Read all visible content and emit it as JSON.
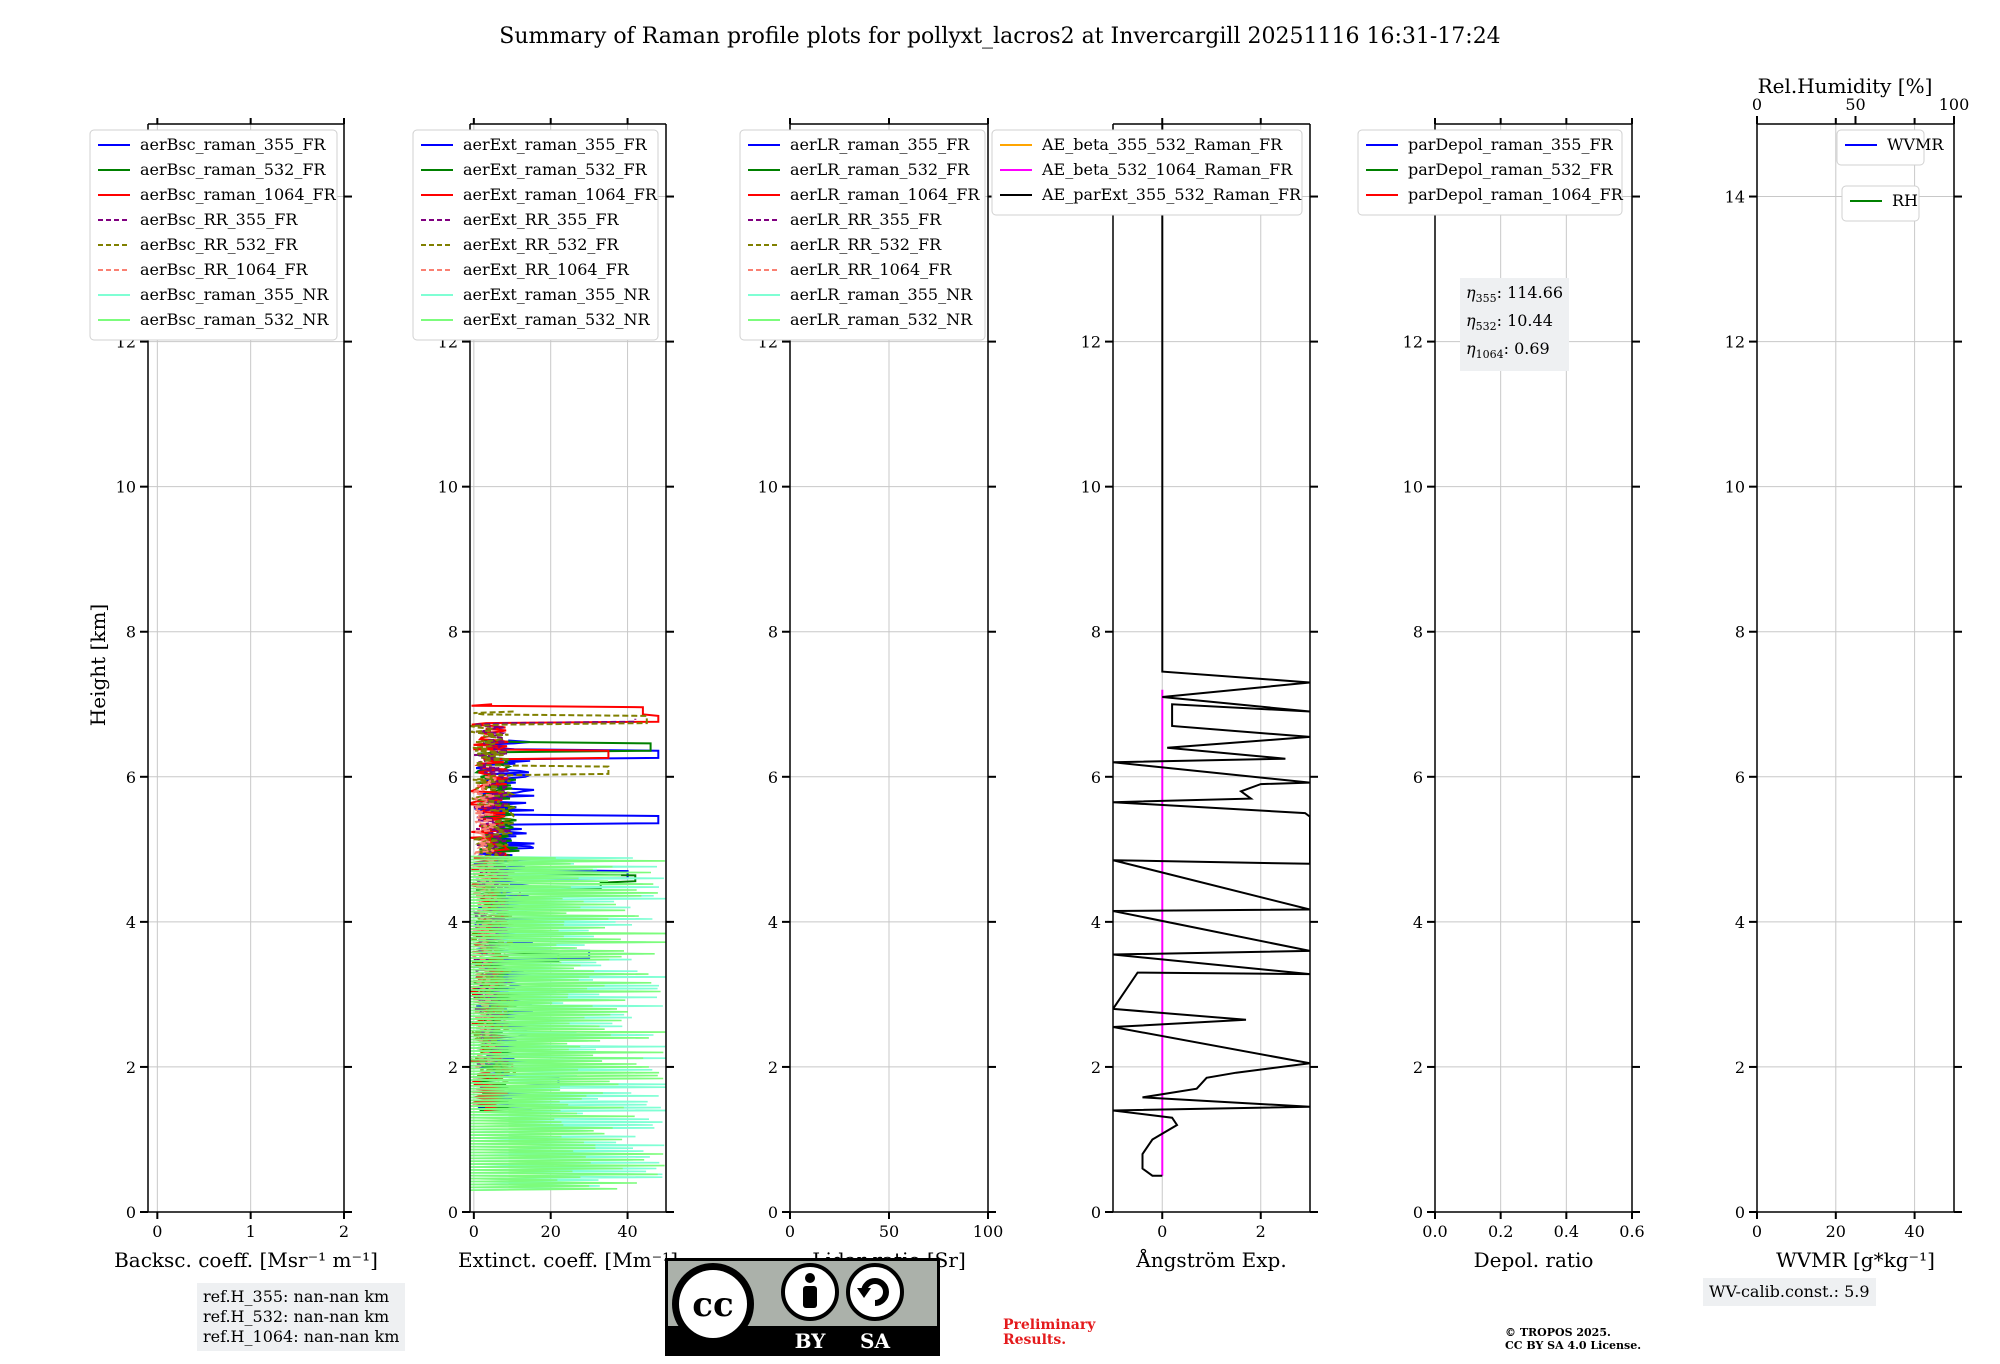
{
  "title": "Summary of Raman profile plots for pollyxt_lacros2 at Invercargill 20251116 16:31-17:24",
  "colors": {
    "blue": "#0000ff",
    "green": "#008000",
    "red": "#ff0000",
    "purple": "#800080",
    "olive": "#808000",
    "salmon": "#fa8072",
    "cyan": "#7fffd4",
    "lightgreen": "#7cfc7c",
    "orange": "#ffa500",
    "magenta": "#ff00ff",
    "black": "#000000"
  },
  "notes": {
    "ref_lines": [
      "ref.H_355: nan-nan km",
      "ref.H_532: nan-nan km",
      "ref.H_1064: nan-nan km"
    ],
    "wv_calib": "WV-calib.const.: 5.9",
    "preliminary": [
      "Preliminary",
      "Results."
    ],
    "copyright": [
      "© TROPOS 2025.",
      "CC BY SA 4.0 License."
    ],
    "eta": [
      {
        "label": "η",
        "sub": "355",
        "value": ": 114.66"
      },
      {
        "label": "η",
        "sub": "532",
        "value": ": 10.44"
      },
      {
        "label": "η",
        "sub": "1064",
        "value": ": 0.69"
      }
    ]
  },
  "cc_badge": {
    "cc": "cc",
    "by": "BY",
    "sa": "SA"
  },
  "chart_data": [
    {
      "type": "line",
      "id": "backscatter",
      "xlabel": "Backsc. coeff. [Msr⁻¹ m⁻¹]",
      "ylabel": "Height [km]",
      "xlim": [
        -0.1,
        2.0
      ],
      "ylim": [
        0,
        15
      ],
      "xticks": [
        "0",
        "1",
        "2"
      ],
      "xtick_values": [
        0,
        1,
        2
      ],
      "yticks": [
        "0",
        "2",
        "4",
        "6",
        "8",
        "10",
        "12",
        "14"
      ],
      "legend": [
        {
          "name": "aerBsc_raman_355_FR",
          "color": "blue",
          "dash": false
        },
        {
          "name": "aerBsc_raman_532_FR",
          "color": "green",
          "dash": false
        },
        {
          "name": "aerBsc_raman_1064_FR",
          "color": "red",
          "dash": false
        },
        {
          "name": "aerBsc_RR_355_FR",
          "color": "purple",
          "dash": true
        },
        {
          "name": "aerBsc_RR_532_FR",
          "color": "olive",
          "dash": true
        },
        {
          "name": "aerBsc_RR_1064_FR",
          "color": "salmon",
          "dash": true
        },
        {
          "name": "aerBsc_raman_355_NR",
          "color": "cyan",
          "dash": false
        },
        {
          "name": "aerBsc_raman_532_NR",
          "color": "lightgreen",
          "dash": false
        }
      ]
    },
    {
      "type": "line",
      "id": "extinction",
      "xlabel": "Extinct. coeff. [Mm⁻¹]",
      "xlim": [
        -1,
        50
      ],
      "ylim": [
        0,
        15
      ],
      "xticks": [
        "0",
        "20",
        "40"
      ],
      "xtick_values": [
        0,
        20,
        40
      ],
      "yticks": [
        "0",
        "2",
        "4",
        "6",
        "8",
        "10",
        "12",
        "14"
      ],
      "legend": [
        {
          "name": "aerExt_raman_355_FR",
          "color": "blue",
          "dash": false
        },
        {
          "name": "aerExt_raman_532_FR",
          "color": "green",
          "dash": false
        },
        {
          "name": "aerExt_raman_1064_FR",
          "color": "red",
          "dash": false
        },
        {
          "name": "aerExt_RR_355_FR",
          "color": "purple",
          "dash": true
        },
        {
          "name": "aerExt_RR_532_FR",
          "color": "olive",
          "dash": true
        },
        {
          "name": "aerExt_RR_1064_FR",
          "color": "salmon",
          "dash": true
        },
        {
          "name": "aerExt_raman_355_NR",
          "color": "cyan",
          "dash": false
        },
        {
          "name": "aerExt_raman_532_NR",
          "color": "lightgreen",
          "dash": false
        }
      ],
      "series": [
        {
          "name": "aerExt_raman_355_FR",
          "color": "blue",
          "dash": false,
          "y0": 1.4,
          "y1": 6.5,
          "base": 8,
          "amp": 8,
          "peaks": [
            {
              "y": 1.8,
              "x": 22
            },
            {
              "y": 3.55,
              "x": 30
            },
            {
              "y": 4.65,
              "x": 40
            },
            {
              "y": 5.4,
              "x": 48
            },
            {
              "y": 6.3,
              "x": 48
            }
          ]
        },
        {
          "name": "aerExt_raman_532_FR",
          "color": "green",
          "dash": false,
          "y0": 1.4,
          "y1": 6.5,
          "base": 6,
          "amp": 6,
          "peaks": [
            {
              "y": 3.5,
              "x": 22
            },
            {
              "y": 4.5,
              "x": 33
            },
            {
              "y": 4.6,
              "x": 42
            },
            {
              "y": 6.4,
              "x": 46
            }
          ]
        },
        {
          "name": "aerExt_raman_1064_FR",
          "color": "red",
          "dash": false,
          "y0": 1.4,
          "y1": 7.0,
          "base": 4,
          "amp": 5,
          "peaks": [
            {
              "y": 2.0,
              "x": 10
            },
            {
              "y": 6.3,
              "x": 35
            },
            {
              "y": 6.8,
              "x": 48
            },
            {
              "y": 6.9,
              "x": 44
            }
          ]
        },
        {
          "name": "aerExt_RR_355_FR",
          "color": "purple",
          "dash": true,
          "y0": 2.0,
          "y1": 6.8,
          "base": 5,
          "amp": 5,
          "peaks": [
            {
              "y": 4.4,
              "x": 12
            },
            {
              "y": 6.8,
              "x": 42
            }
          ]
        },
        {
          "name": "aerExt_RR_532_FR",
          "color": "olive",
          "dash": true,
          "y0": 1.8,
          "y1": 6.9,
          "base": 5,
          "amp": 6,
          "peaks": [
            {
              "y": 6.1,
              "x": 35
            },
            {
              "y": 6.8,
              "x": 45
            }
          ]
        },
        {
          "name": "aerExt_RR_1064_FR",
          "color": "salmon",
          "dash": true,
          "y0": 2.0,
          "y1": 6.0,
          "base": 3,
          "amp": 3,
          "peaks": []
        },
        {
          "name": "aerExt_raman_355_NR",
          "color": "cyan",
          "dash": false,
          "y0": 0.3,
          "y1": 4.9,
          "base": 20,
          "amp": 32,
          "peaks": []
        },
        {
          "name": "aerExt_raman_532_NR",
          "color": "lightgreen",
          "dash": false,
          "y0": 0.3,
          "y1": 4.9,
          "base": 20,
          "amp": 32,
          "peaks": []
        }
      ]
    },
    {
      "type": "line",
      "id": "lidar_ratio",
      "xlabel": "Lidar ratio [Sr]",
      "xlim": [
        0,
        100
      ],
      "ylim": [
        0,
        15
      ],
      "xticks": [
        "0",
        "50",
        "100"
      ],
      "xtick_values": [
        0,
        50,
        100
      ],
      "yticks": [
        "0",
        "2",
        "4",
        "6",
        "8",
        "10",
        "12",
        "14"
      ],
      "legend": [
        {
          "name": "aerLR_raman_355_FR",
          "color": "blue",
          "dash": false
        },
        {
          "name": "aerLR_raman_532_FR",
          "color": "green",
          "dash": false
        },
        {
          "name": "aerLR_raman_1064_FR",
          "color": "red",
          "dash": false
        },
        {
          "name": "aerLR_RR_355_FR",
          "color": "purple",
          "dash": true
        },
        {
          "name": "aerLR_RR_532_FR",
          "color": "olive",
          "dash": true
        },
        {
          "name": "aerLR_RR_1064_FR",
          "color": "salmon",
          "dash": true
        },
        {
          "name": "aerLR_raman_355_NR",
          "color": "cyan",
          "dash": false
        },
        {
          "name": "aerLR_raman_532_NR",
          "color": "lightgreen",
          "dash": false
        }
      ]
    },
    {
      "type": "line",
      "id": "angstrom",
      "xlabel": "Ångström Exp.",
      "xlim": [
        -1,
        3
      ],
      "ylim": [
        0,
        15
      ],
      "xticks": [
        "0",
        "2"
      ],
      "xtick_values": [
        0,
        2
      ],
      "yticks": [
        "0",
        "2",
        "4",
        "6",
        "8",
        "10",
        "12"
      ],
      "legend": [
        {
          "name": "AE_beta_355_532_Raman_FR",
          "color": "orange",
          "dash": false
        },
        {
          "name": "AE_beta_532_1064_Raman_FR",
          "color": "magenta",
          "dash": false
        },
        {
          "name": "AE_parExt_355_532_Raman_FR",
          "color": "black",
          "dash": false
        }
      ],
      "series": [
        {
          "name": "AE_beta_532_1064_Raman_FR",
          "color": "magenta",
          "points": [
            [
              0,
              0.5
            ],
            [
              0,
              7.2
            ]
          ]
        },
        {
          "name": "AE_parExt_355_532_Raman_FR",
          "color": "black",
          "points": [
            [
              0,
              0.5
            ],
            [
              -0.2,
              0.5
            ],
            [
              -0.4,
              0.6
            ],
            [
              -0.4,
              0.8
            ],
            [
              -0.2,
              1.0
            ],
            [
              0.3,
              1.2
            ],
            [
              0.2,
              1.3
            ],
            [
              -1,
              1.4
            ],
            [
              3,
              1.45
            ],
            [
              -0.4,
              1.58
            ],
            [
              0.7,
              1.7
            ],
            [
              0.9,
              1.85
            ],
            [
              1.5,
              1.92
            ],
            [
              3,
              2.05
            ],
            [
              -1,
              2.55
            ],
            [
              1.7,
              2.65
            ],
            [
              -1,
              2.8
            ],
            [
              -0.5,
              3.3
            ],
            [
              3,
              3.28
            ],
            [
              -1,
              3.55
            ],
            [
              3,
              3.6
            ],
            [
              -1,
              4.15
            ],
            [
              3,
              4.17
            ],
            [
              -1,
              4.85
            ],
            [
              3,
              4.8
            ],
            [
              3,
              5.45
            ],
            [
              2.9,
              5.5
            ],
            [
              -1,
              5.65
            ],
            [
              1.8,
              5.7
            ],
            [
              1.6,
              5.8
            ],
            [
              2.0,
              5.9
            ],
            [
              3,
              5.92
            ],
            [
              -1,
              6.2
            ],
            [
              2.5,
              6.25
            ],
            [
              0.1,
              6.4
            ],
            [
              3,
              6.55
            ],
            [
              0.2,
              6.7
            ],
            [
              0.2,
              7.0
            ],
            [
              3,
              6.9
            ],
            [
              0,
              7.1
            ],
            [
              3,
              7.3
            ],
            [
              0,
              7.45
            ],
            [
              0,
              15
            ]
          ]
        }
      ]
    },
    {
      "type": "line",
      "id": "depolarization",
      "xlabel": "Depol. ratio",
      "xlim": [
        0,
        0.6
      ],
      "ylim": [
        0,
        15
      ],
      "xticks": [
        "0.0",
        "0.2",
        "0.4",
        "0.6"
      ],
      "xtick_values": [
        0,
        0.2,
        0.4,
        0.6
      ],
      "yticks": [
        "0",
        "2",
        "4",
        "6",
        "8",
        "10",
        "12",
        "14"
      ],
      "legend": [
        {
          "name": "parDepol_raman_355_FR",
          "color": "blue",
          "dash": false
        },
        {
          "name": "parDepol_raman_532_FR",
          "color": "green",
          "dash": false
        },
        {
          "name": "parDepol_raman_1064_FR",
          "color": "red",
          "dash": false
        }
      ]
    },
    {
      "type": "line",
      "id": "wvmr",
      "xlabel": "WVMR [g*kg⁻¹]",
      "top_xlabel": "Rel.Humidity [%]",
      "xlim": [
        0,
        50
      ],
      "ylim": [
        0,
        15
      ],
      "xticks": [
        "0",
        "20",
        "40"
      ],
      "xtick_values": [
        0,
        20,
        40
      ],
      "top_xticks": [
        "0",
        "50",
        "100"
      ],
      "top_xtick_values": [
        0,
        50,
        100
      ],
      "yticks": [
        "0",
        "2",
        "4",
        "6",
        "8",
        "10",
        "12",
        "14"
      ],
      "legend": [
        {
          "name": "WVMR",
          "color": "blue",
          "dash": false
        },
        {
          "name": "RH",
          "color": "green",
          "dash": false
        }
      ]
    }
  ]
}
